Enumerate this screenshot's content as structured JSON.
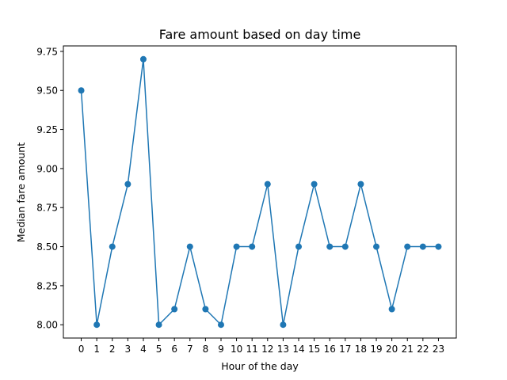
{
  "chart_data": {
    "type": "line",
    "title": "Fare amount based on day time",
    "xlabel": "Hour of the day",
    "ylabel": "Median fare amount",
    "x": [
      0,
      1,
      2,
      3,
      4,
      5,
      6,
      7,
      8,
      9,
      10,
      11,
      12,
      13,
      14,
      15,
      16,
      17,
      18,
      19,
      20,
      21,
      22,
      23
    ],
    "series": [
      {
        "values": [
          9.5,
          8.0,
          8.5,
          8.9,
          9.7,
          8.0,
          8.1,
          8.5,
          8.1,
          8.0,
          8.5,
          8.5,
          8.9,
          8.0,
          8.5,
          8.9,
          8.5,
          8.5,
          8.9,
          8.5,
          8.1,
          8.5,
          8.5,
          8.5
        ],
        "color": "#1f77b4",
        "marker": "circle"
      }
    ],
    "xticks": [
      "0",
      "1",
      "2",
      "3",
      "4",
      "5",
      "6",
      "7",
      "8",
      "9",
      "10",
      "11",
      "12",
      "13",
      "14",
      "15",
      "16",
      "17",
      "18",
      "19",
      "20",
      "21",
      "22",
      "23"
    ],
    "yticks": [
      "8.00",
      "8.25",
      "8.50",
      "8.75",
      "9.00",
      "9.25",
      "9.50",
      "9.75"
    ],
    "ytick_values": [
      8.0,
      8.25,
      8.5,
      8.75,
      9.0,
      9.25,
      9.5,
      9.75
    ],
    "xlim": [
      -1.15,
      24.15
    ],
    "ylim": [
      7.915,
      9.785
    ],
    "grid": false
  }
}
